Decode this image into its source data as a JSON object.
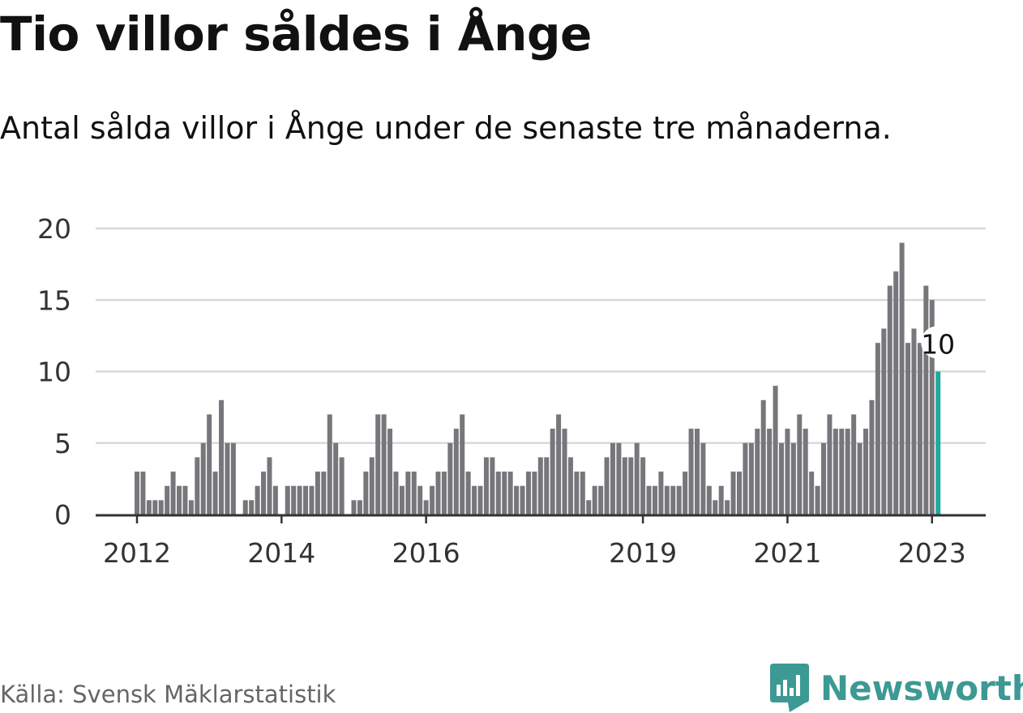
{
  "title": "Tio villor såldes i Ånge",
  "subtitle": "Antal sålda villor i Ånge under de senaste tre månaderna.",
  "source": "Källa: Svensk Mäklarstatistik",
  "brand": {
    "name": "Newsworthy",
    "icon": "newsworthy-logo-icon"
  },
  "colors": {
    "bar": "#77767b",
    "highlight": "#1fa99f",
    "grid": "#d9d9d9",
    "axis": "#333333"
  },
  "chart_data": {
    "type": "bar",
    "title": "",
    "xlabel": "",
    "ylabel": "",
    "ylim": [
      0,
      20
    ],
    "yticks": [
      0,
      5,
      10,
      15,
      20
    ],
    "xticks": [
      {
        "label": "2012",
        "index": 0
      },
      {
        "label": "2014",
        "index": 24
      },
      {
        "label": "2016",
        "index": 48
      },
      {
        "label": "2019",
        "index": 84
      },
      {
        "label": "2021",
        "index": 108
      },
      {
        "label": "2023",
        "index": 132
      }
    ],
    "start": "2012-01",
    "grid": true,
    "values": [
      3,
      3,
      1,
      1,
      1,
      2,
      3,
      2,
      2,
      1,
      4,
      5,
      7,
      3,
      8,
      5,
      5,
      0,
      1,
      1,
      2,
      3,
      4,
      2,
      0,
      2,
      2,
      2,
      2,
      2,
      3,
      3,
      7,
      5,
      4,
      0,
      1,
      1,
      3,
      4,
      7,
      7,
      6,
      3,
      2,
      3,
      3,
      2,
      1,
      2,
      3,
      3,
      5,
      6,
      7,
      3,
      2,
      2,
      4,
      4,
      3,
      3,
      3,
      2,
      2,
      3,
      3,
      4,
      4,
      6,
      7,
      6,
      4,
      3,
      3,
      1,
      2,
      2,
      4,
      5,
      5,
      4,
      4,
      5,
      4,
      2,
      2,
      3,
      2,
      2,
      2,
      3,
      6,
      6,
      5,
      2,
      1,
      2,
      1,
      3,
      3,
      5,
      5,
      6,
      8,
      6,
      9,
      5,
      6,
      5,
      7,
      6,
      3,
      2,
      5,
      7,
      6,
      6,
      6,
      7,
      5,
      6,
      8,
      12,
      13,
      16,
      17,
      19,
      12,
      13,
      12,
      16,
      15,
      10
    ],
    "highlight_label": "10"
  }
}
